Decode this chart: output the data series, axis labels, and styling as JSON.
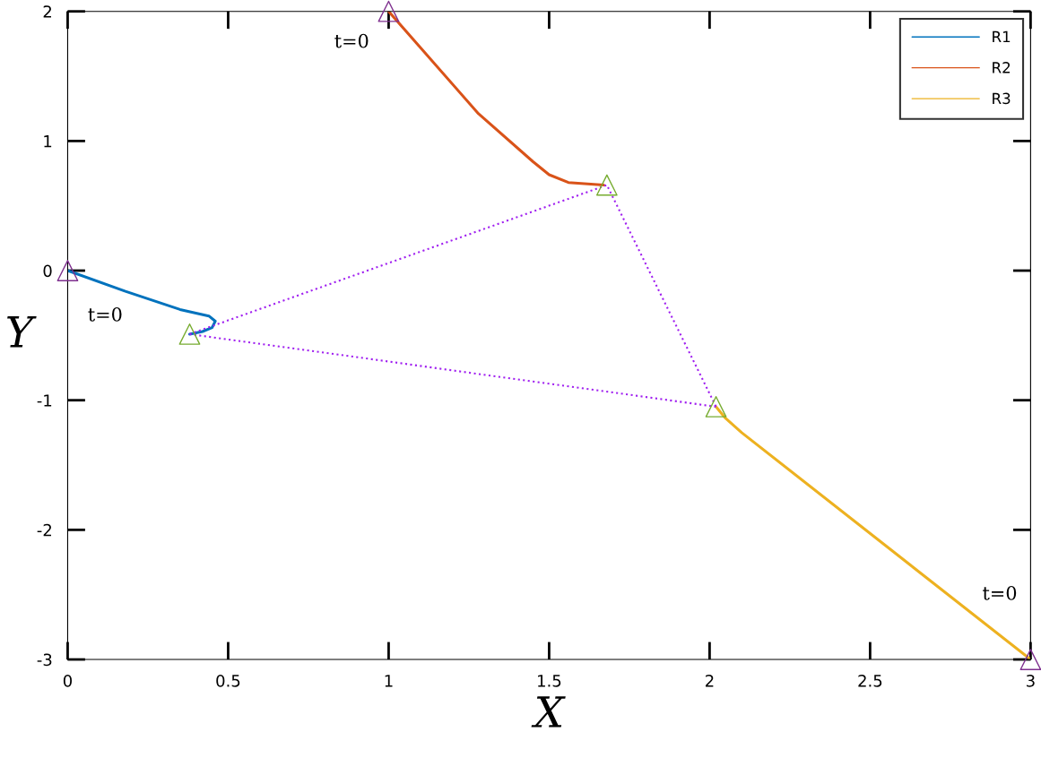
{
  "chart_data": {
    "type": "line",
    "xlabel": "X",
    "ylabel": "Y",
    "xlim": [
      0,
      3
    ],
    "ylim": [
      -3,
      2
    ],
    "xticks": [
      0,
      0.5,
      1,
      1.5,
      2,
      2.5,
      3
    ],
    "yticks": [
      -3,
      -2,
      -1,
      0,
      1,
      2
    ],
    "grid": false,
    "legend": "top right",
    "series": [
      {
        "name": "R1",
        "type": "line",
        "color": "#0072bd",
        "marker": "none",
        "line_style": "solid",
        "x": [
          0,
          0.18,
          0.35,
          0.44,
          0.46,
          0.45,
          0.42,
          0.38
        ],
        "values": [
          0,
          -0.16,
          -0.3,
          -0.35,
          -0.39,
          -0.44,
          -0.47,
          -0.49
        ]
      },
      {
        "name": "R2",
        "type": "line",
        "color": "#d95319",
        "marker": "none",
        "line_style": "solid",
        "x": [
          1,
          1.28,
          1.45,
          1.5,
          1.56,
          1.67
        ],
        "values": [
          2,
          1.21,
          0.84,
          0.74,
          0.68,
          0.66
        ]
      },
      {
        "name": "R3",
        "type": "line",
        "color": "#edb120",
        "marker": "none",
        "line_style": "solid",
        "x": [
          2.02,
          2.05,
          2.1,
          3
        ],
        "values": [
          -1.05,
          -1.14,
          -1.25,
          -3
        ]
      },
      {
        "type": "line",
        "color": "#a020f0",
        "marker": "none",
        "line_style": "dotted",
        "x": [
          0.38,
          1.68,
          2.02
        ],
        "values": [
          -0.49,
          0.66,
          -1.05
        ]
      },
      {
        "type": "line",
        "color": "#a020f0",
        "marker": "none",
        "line_style": "dotted",
        "x": [
          2.02,
          0.38
        ],
        "values": [
          -1.05,
          -0.49
        ]
      },
      {
        "type": "scatter",
        "color": "#7e2f8e",
        "marker": "triangle",
        "x": [
          0,
          1,
          3
        ],
        "values": [
          0,
          2,
          -3
        ]
      },
      {
        "type": "scatter",
        "color": "#77ac30",
        "marker": "triangle",
        "x": [
          0.38,
          1.68,
          2.02
        ],
        "values": [
          -0.49,
          0.66,
          -1.05
        ]
      }
    ],
    "annotations": [
      "t=0",
      "t=0",
      "t=0"
    ]
  }
}
